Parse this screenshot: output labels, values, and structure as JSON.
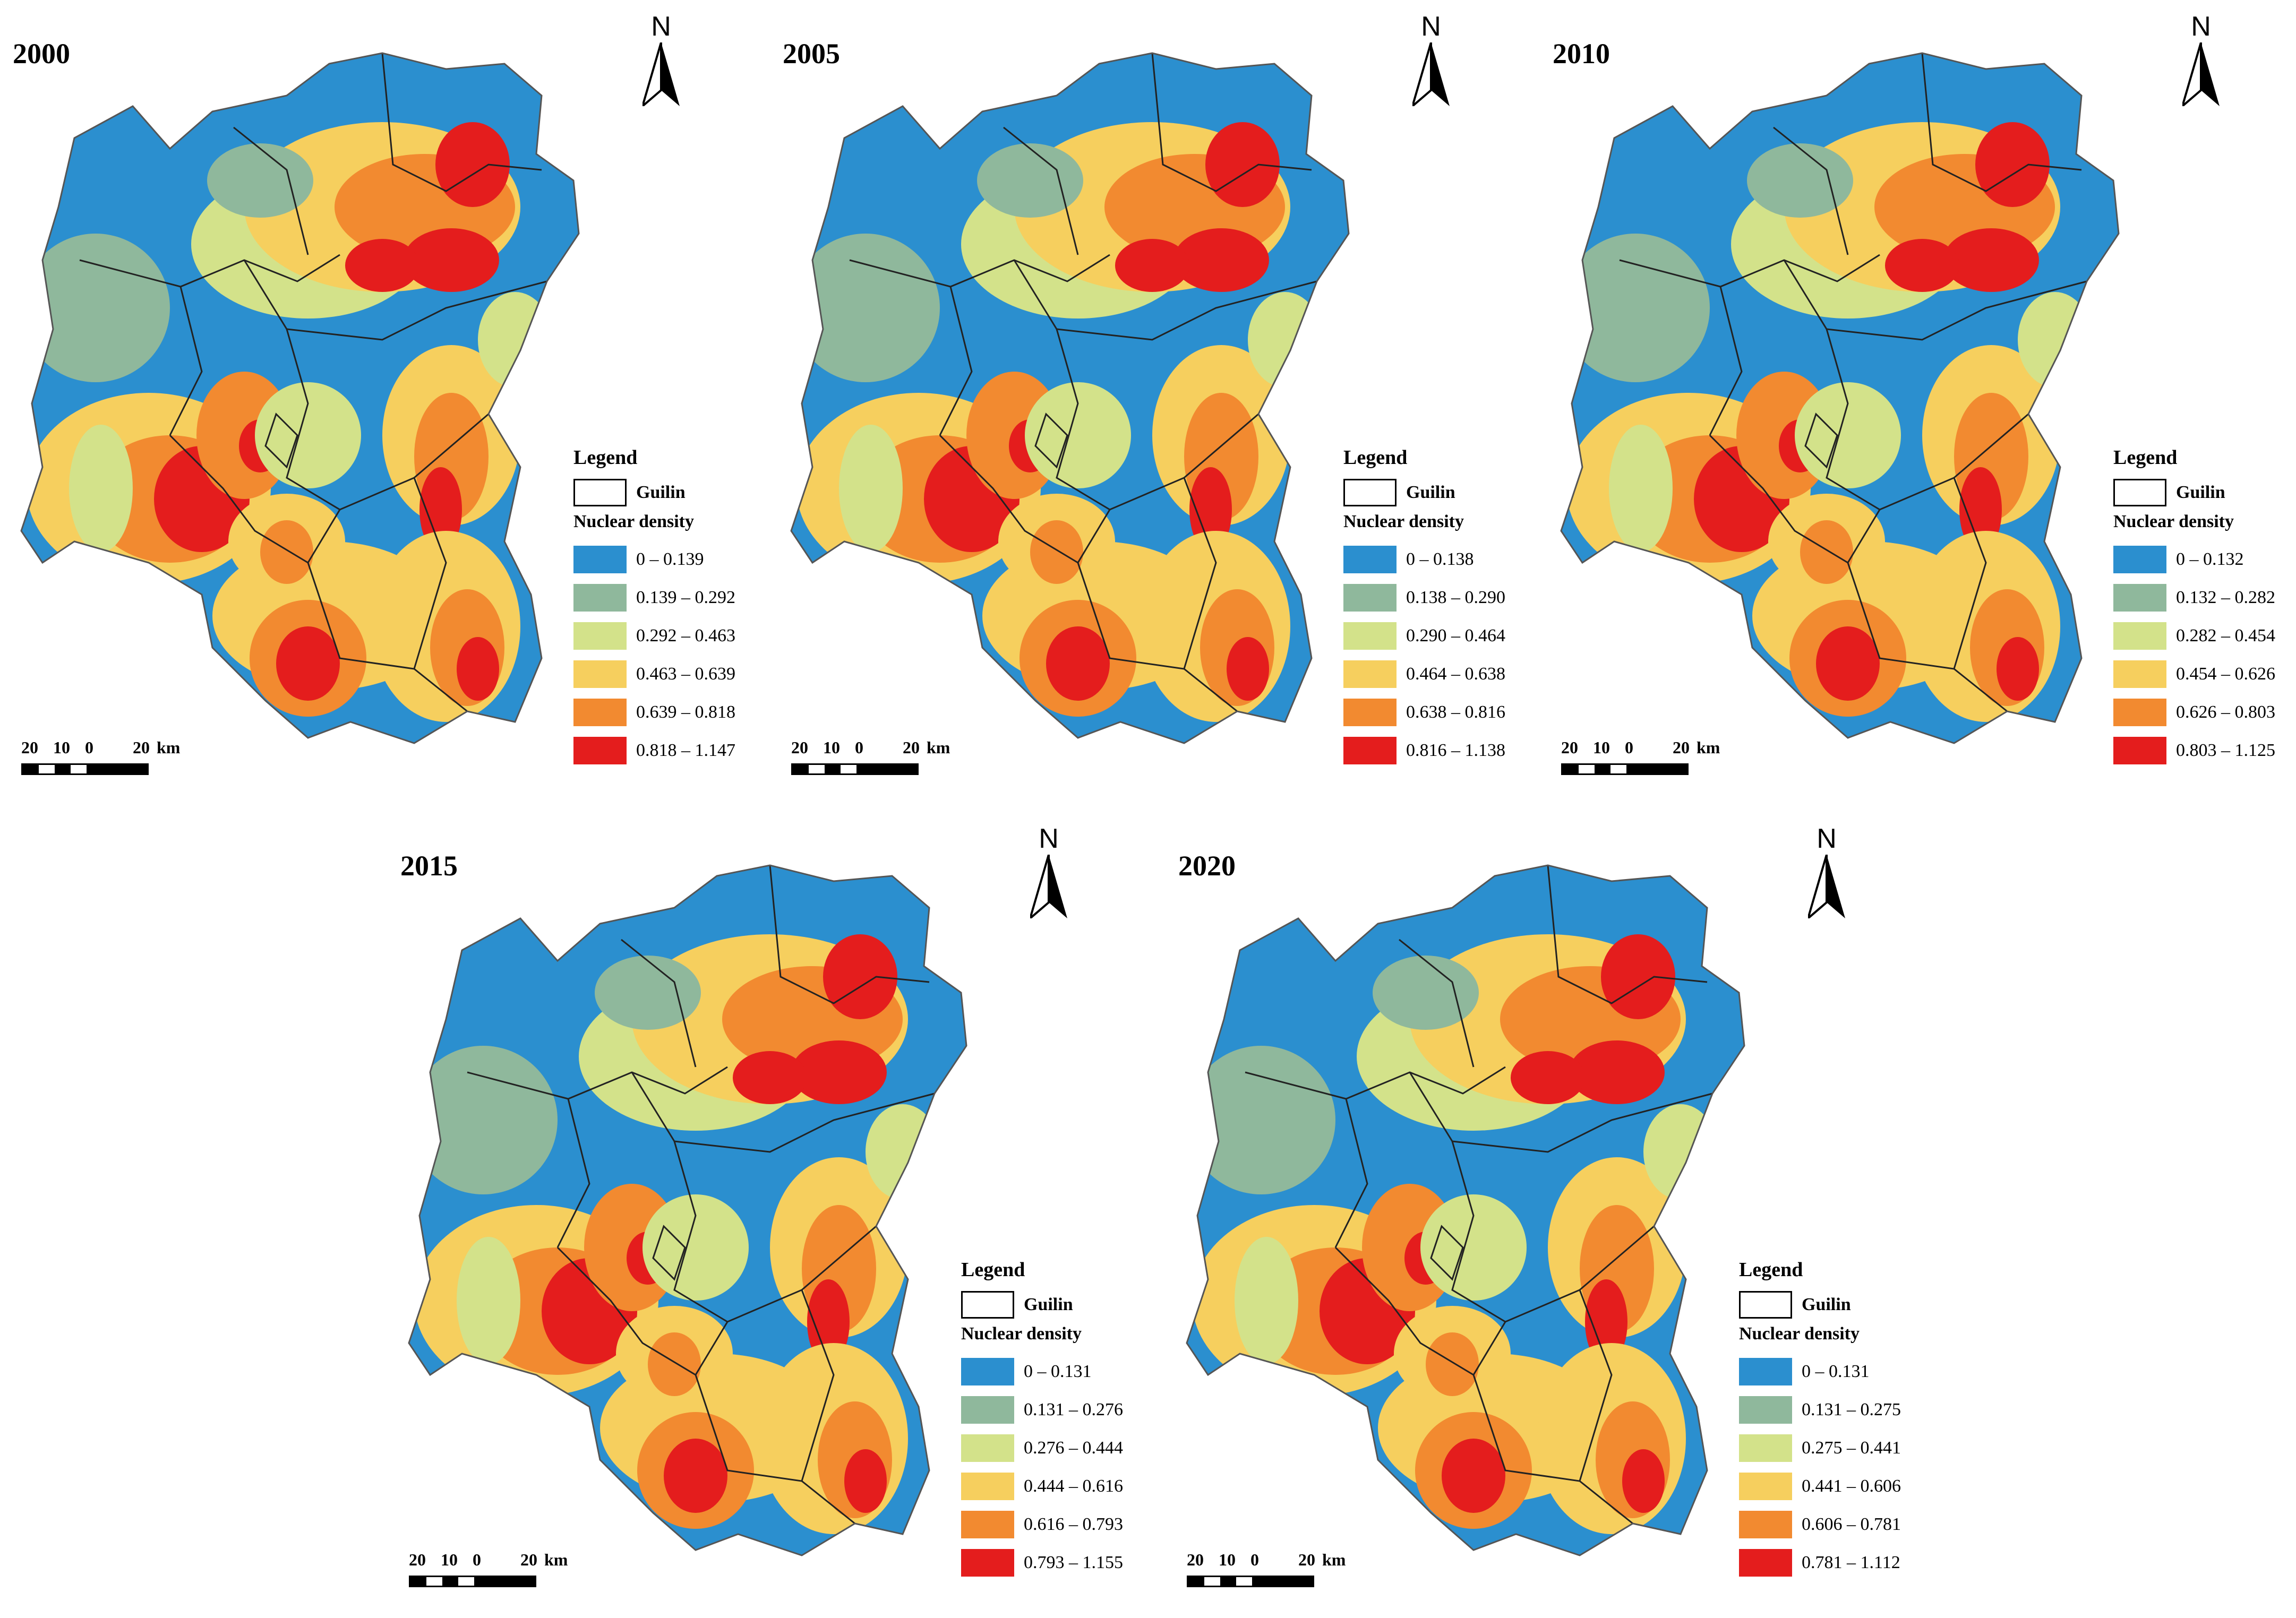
{
  "colors": {
    "c1": "#2b8fcf",
    "c2": "#8fb89c",
    "c3": "#d3e28a",
    "c4": "#f6cf5e",
    "c5": "#f28a30",
    "c6": "#e41d1d"
  },
  "legend_common": {
    "title": "Legend",
    "guilin_label": "Guilin",
    "density_label": "Nuclear density"
  },
  "scale": {
    "t1": "20",
    "t2": "10",
    "t3": "0",
    "t4": "20",
    "unit": "km"
  },
  "north_letter": "N",
  "panels": [
    {
      "year": "2000",
      "classes": [
        "0 – 0.139",
        "0.139 – 0.292",
        "0.292 – 0.463",
        "0.463 – 0.639",
        "0.639 – 0.818",
        "0.818 – 1.147"
      ]
    },
    {
      "year": "2005",
      "classes": [
        "0 – 0.138",
        "0.138 – 0.290",
        "0.290 – 0.464",
        "0.464 – 0.638",
        "0.638 – 0.816",
        "0.816 – 1.138"
      ]
    },
    {
      "year": "2010",
      "classes": [
        "0 – 0.132",
        "0.132 – 0.282",
        "0.282 – 0.454",
        "0.454 – 0.626",
        "0.626 – 0.803",
        "0.803 – 1.125"
      ]
    },
    {
      "year": "2015",
      "classes": [
        "0 – 0.131",
        "0.131 – 0.276",
        "0.276 – 0.444",
        "0.444 – 0.616",
        "0.616 – 0.793",
        "0.793 – 1.155"
      ]
    },
    {
      "year": "2020",
      "classes": [
        "0 – 0.131",
        "0.131 – 0.275",
        "0.275 – 0.441",
        "0.441 – 0.606",
        "0.606 – 0.781",
        "0.781 – 1.112"
      ]
    }
  ]
}
